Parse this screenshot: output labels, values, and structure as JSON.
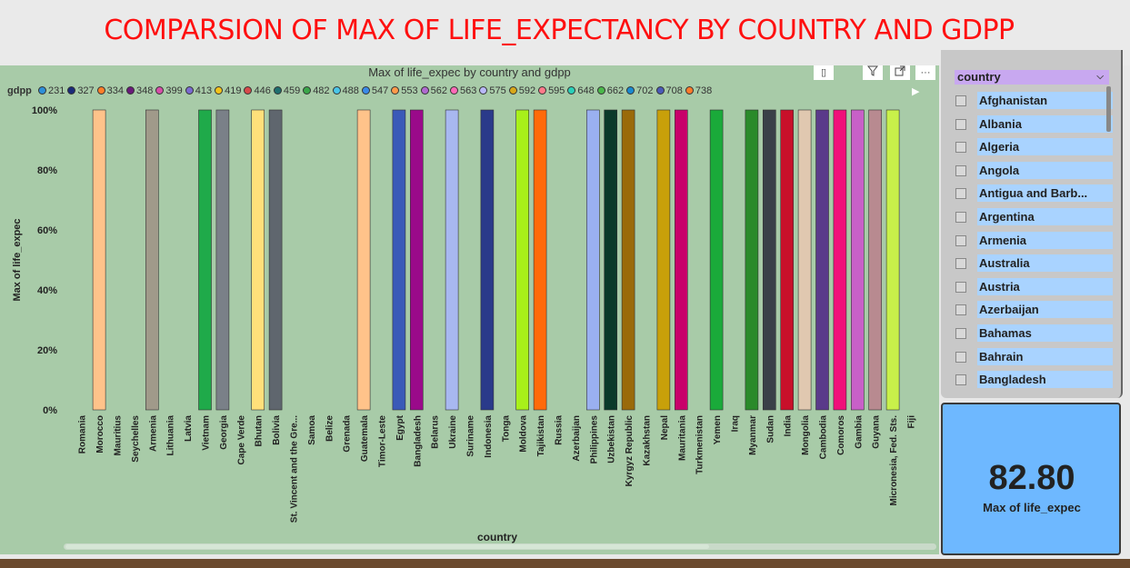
{
  "slide": {
    "title": "COMPARSION OF MAX OF LIFE_EXPECTANCY BY COUNTRY AND GDPP"
  },
  "visual_header": {
    "focus_icon": "▯",
    "filter_icon": "filter-icon",
    "expand_icon": "expand-icon",
    "more_icon": "···"
  },
  "legend": {
    "title": "gdpp",
    "items": [
      {
        "label": "231",
        "color": "#2e8fd8"
      },
      {
        "label": "327",
        "color": "#1a2a7a"
      },
      {
        "label": "334",
        "color": "#ff7f2a"
      },
      {
        "label": "348",
        "color": "#6a1a7a"
      },
      {
        "label": "399",
        "color": "#d64fa8"
      },
      {
        "label": "413",
        "color": "#7a6ad0"
      },
      {
        "label": "419",
        "color": "#f2c21a"
      },
      {
        "label": "446",
        "color": "#d64a4a"
      },
      {
        "label": "459",
        "color": "#1f6f6f"
      },
      {
        "label": "482",
        "color": "#3aa64a"
      },
      {
        "label": "488",
        "color": "#4ac6e8"
      },
      {
        "label": "547",
        "color": "#3a8ae8"
      },
      {
        "label": "553",
        "color": "#ff9a4a"
      },
      {
        "label": "562",
        "color": "#b06ad0"
      },
      {
        "label": "563",
        "color": "#ff6ab8"
      },
      {
        "label": "575",
        "color": "#b8b8f8"
      },
      {
        "label": "592",
        "color": "#d8a81a"
      },
      {
        "label": "595",
        "color": "#ff7a8a"
      },
      {
        "label": "648",
        "color": "#2ad0b8"
      },
      {
        "label": "662",
        "color": "#4ab84a"
      },
      {
        "label": "702",
        "color": "#1a8ad0"
      },
      {
        "label": "708",
        "color": "#4a5ab8"
      },
      {
        "label": "738",
        "color": "#ff7a2a"
      }
    ]
  },
  "chart_data": {
    "type": "bar",
    "title": "Max of life_expec by country and gdpp",
    "xlabel": "country",
    "ylabel": "Max of life_expec",
    "ylim": [
      0,
      100
    ],
    "yticks": [
      "0%",
      "20%",
      "40%",
      "60%",
      "80%",
      "100%"
    ],
    "categories": [
      "Romania",
      "Morocco",
      "Mauritius",
      "Seychelles",
      "Armenia",
      "Lithuania",
      "Latvia",
      "Vietnam",
      "Georgia",
      "Cape Verde",
      "Bhutan",
      "Bolivia",
      "St. Vincent and the Gre...",
      "Samoa",
      "Belize",
      "Grenada",
      "Guatemala",
      "Timor-Leste",
      "Egypt",
      "Bangladesh",
      "Belarus",
      "Ukraine",
      "Suriname",
      "Indonesia",
      "Tonga",
      "Moldova",
      "Tajikistan",
      "Russia",
      "Azerbaijan",
      "Philippines",
      "Uzbekistan",
      "Kyrgyz Republic",
      "Kazakhstan",
      "Nepal",
      "Mauritania",
      "Turkmenistan",
      "Yemen",
      "Iraq",
      "Myanmar",
      "Sudan",
      "India",
      "Mongolia",
      "Cambodia",
      "Comoros",
      "Gambia",
      "Guyana",
      "Micronesia, Fed. Sts.",
      "Fiji"
    ],
    "values": [
      null,
      100,
      null,
      null,
      100,
      null,
      null,
      100,
      100,
      null,
      100,
      100,
      null,
      null,
      null,
      null,
      100,
      null,
      100,
      100,
      null,
      100,
      null,
      100,
      null,
      100,
      100,
      null,
      null,
      100,
      100,
      100,
      null,
      100,
      100,
      null,
      100,
      null,
      100,
      100,
      100,
      100,
      100,
      100,
      100,
      100,
      100,
      null
    ],
    "bar_colors": [
      "",
      "#ffc38a",
      "",
      "",
      "#a09a8a",
      "",
      "",
      "#1faa4a",
      "#7a8088",
      "",
      "#ffe07a",
      "#5f666e",
      "",
      "",
      "",
      "",
      "#ffc38a",
      "",
      "#3a5ab8",
      "#9a0a8a",
      "",
      "#a8b8f0",
      "",
      "#2a3a8a",
      "",
      "#a8f01a",
      "#ff6a0a",
      "",
      "",
      "#9ab0f0",
      "#0a3a2a",
      "#9a6a0a",
      "",
      "#c8a00a",
      "#c8006a",
      "",
      "#1aaa3a",
      "",
      "#2a8a2a",
      "#3a4048",
      "#c8102a",
      "#e0c8b0",
      "#5a3a8a",
      "#f0107a",
      "#c860c8",
      "#b88a90",
      "#c8f04a",
      ""
    ]
  },
  "slicer": {
    "header": "country",
    "items": [
      "Afghanistan",
      "Albania",
      "Algeria",
      "Angola",
      "Antigua and Barb...",
      "Argentina",
      "Armenia",
      "Australia",
      "Austria",
      "Azerbaijan",
      "Bahamas",
      "Bahrain",
      "Bangladesh"
    ]
  },
  "card": {
    "value": "82.80",
    "label": "Max of life_expec"
  }
}
